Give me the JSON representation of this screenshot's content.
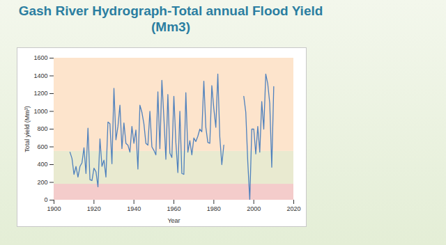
{
  "chart_data": {
    "type": "line",
    "title": "Gash River Hydrograph-Total annual Flood Yield (Mm3)",
    "xlabel": "Year",
    "ylabel": "Total yield (Mm³)",
    "x": [
      1908,
      1909,
      1910,
      1911,
      1912,
      1913,
      1914,
      1915,
      1916,
      1917,
      1918,
      1919,
      1920,
      1921,
      1922,
      1923,
      1924,
      1925,
      1926,
      1927,
      1928,
      1929,
      1930,
      1931,
      1932,
      1933,
      1934,
      1935,
      1936,
      1937,
      1938,
      1939,
      1940,
      1941,
      1942,
      1943,
      1944,
      1945,
      1946,
      1947,
      1948,
      1949,
      1950,
      1951,
      1952,
      1953,
      1954,
      1955,
      1956,
      1957,
      1958,
      1959,
      1960,
      1961,
      1962,
      1963,
      1964,
      1965,
      1966,
      1967,
      1968,
      1969,
      1970,
      1971,
      1972,
      1973,
      1974,
      1975,
      1976,
      1977,
      1978,
      1979,
      1980,
      1981,
      1982,
      1983,
      1984,
      1985,
      1986,
      1987,
      1988,
      1989,
      1990,
      1991,
      1992,
      1993,
      1994,
      1995,
      1996,
      1997,
      1998,
      1999,
      2000,
      2001,
      2002,
      2003,
      2004,
      2005,
      2006,
      2007,
      2008,
      2009,
      2010
    ],
    "values": [
      540,
      470,
      290,
      380,
      260,
      380,
      420,
      590,
      300,
      810,
      230,
      220,
      360,
      320,
      150,
      690,
      380,
      450,
      260,
      880,
      860,
      410,
      1260,
      680,
      830,
      1070,
      580,
      870,
      640,
      620,
      540,
      830,
      640,
      790,
      350,
      1070,
      990,
      860,
      640,
      620,
      1000,
      600,
      560,
      510,
      1220,
      580,
      1350,
      930,
      460,
      1190,
      530,
      480,
      1170,
      650,
      310,
      1000,
      300,
      290,
      1210,
      540,
      670,
      510,
      700,
      660,
      720,
      800,
      770,
      1340,
      820,
      650,
      640,
      1290,
      1030,
      820,
      1420,
      710,
      400,
      620,
      null,
      null,
      null,
      null,
      null,
      null,
      null,
      null,
      null,
      1170,
      990,
      430,
      0,
      800,
      800,
      520,
      830,
      540,
      1110,
      800,
      1420,
      1310,
      1090,
      370,
      1280
    ],
    "color": "#4f81bd",
    "xlim": [
      1900,
      2020
    ],
    "xticks": [
      1900,
      1920,
      1940,
      1960,
      1980,
      2000,
      2020
    ],
    "ylim": [
      0,
      1600
    ],
    "yticks": [
      0,
      200,
      400,
      600,
      800,
      1000,
      1200,
      1400,
      1600
    ],
    "grid": false,
    "bands": [
      {
        "from": 0,
        "to": 180,
        "color": "#f4cccb"
      },
      {
        "from": 180,
        "to": 550,
        "color": "#e9ead0"
      },
      {
        "from": 550,
        "to": 1600,
        "color": "#fde4cc"
      }
    ]
  }
}
